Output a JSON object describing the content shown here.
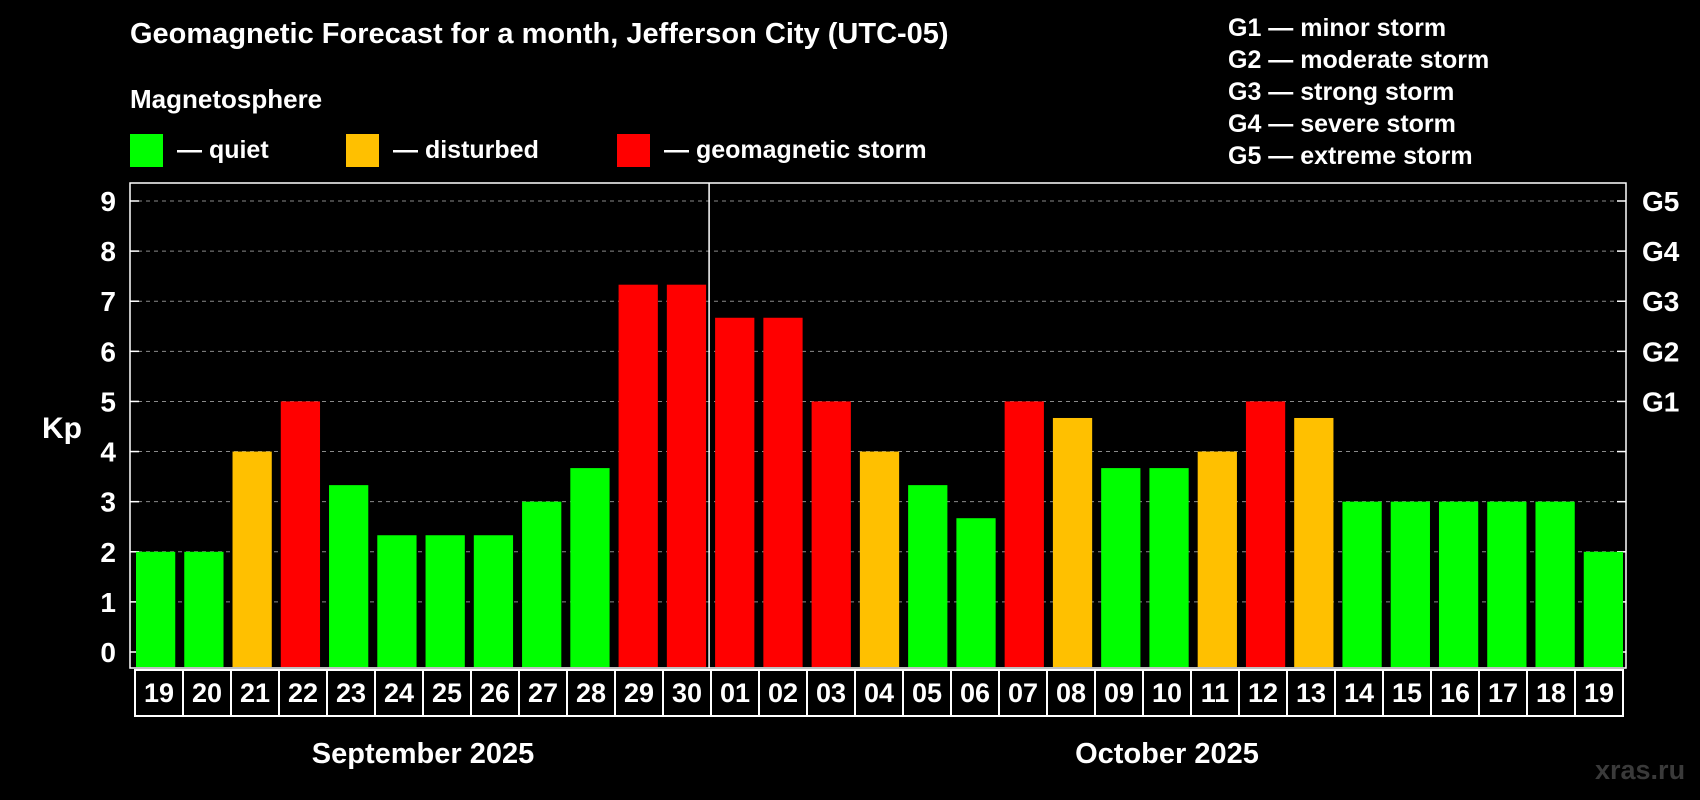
{
  "title": "Geomagnetic Forecast for a month, Jefferson City (UTC-05)",
  "legend": {
    "heading": "Magnetosphere",
    "items": [
      {
        "label": "— quiet",
        "color": "#00ff00"
      },
      {
        "label": "— disturbed",
        "color": "#ffc000"
      },
      {
        "label": "— geomagnetic storm",
        "color": "#ff0000"
      }
    ]
  },
  "storm_scale": [
    "G1 — minor storm",
    "G2 — moderate storm",
    "G3 — strong storm",
    "G4 — severe storm",
    "G5 — extreme storm"
  ],
  "watermark": "xras.ru",
  "chart_data": {
    "type": "bar",
    "ylabel": "Kp",
    "ylim": [
      0,
      9
    ],
    "yticks": [
      "0",
      "1",
      "2",
      "3",
      "4",
      "5",
      "6",
      "7",
      "8",
      "9"
    ],
    "right_axis_labels": [
      {
        "value": 5,
        "label": "G1"
      },
      {
        "value": 6,
        "label": "G2"
      },
      {
        "value": 7,
        "label": "G3"
      },
      {
        "value": 8,
        "label": "G4"
      },
      {
        "value": 9,
        "label": "G5"
      }
    ],
    "grid": "horizontal dashed",
    "categories": [
      "19",
      "20",
      "21",
      "22",
      "23",
      "24",
      "25",
      "26",
      "27",
      "28",
      "29",
      "30",
      "01",
      "02",
      "03",
      "04",
      "05",
      "06",
      "07",
      "08",
      "09",
      "10",
      "11",
      "12",
      "13",
      "14",
      "15",
      "16",
      "17",
      "18",
      "19"
    ],
    "values": [
      2,
      2,
      4,
      5,
      3.33,
      2.33,
      2.33,
      2.33,
      3,
      3.67,
      7.33,
      7.33,
      6.67,
      6.67,
      5,
      4,
      3.33,
      2.67,
      5,
      4.67,
      3.67,
      3.67,
      4,
      5,
      4.67,
      3,
      3,
      3,
      3,
      3,
      2
    ],
    "levels": [
      "quiet",
      "quiet",
      "disturbed",
      "storm",
      "quiet",
      "quiet",
      "quiet",
      "quiet",
      "quiet",
      "quiet",
      "storm",
      "storm",
      "storm",
      "storm",
      "storm",
      "disturbed",
      "quiet",
      "quiet",
      "storm",
      "disturbed",
      "quiet",
      "quiet",
      "disturbed",
      "storm",
      "disturbed",
      "quiet",
      "quiet",
      "quiet",
      "quiet",
      "quiet",
      "quiet"
    ],
    "level_colors": {
      "quiet": "#00ff00",
      "disturbed": "#ffc000",
      "storm": "#ff0000"
    },
    "months": [
      {
        "label": "September 2025",
        "start_index": 0,
        "end_index": 11
      },
      {
        "label": "October 2025",
        "start_index": 12,
        "end_index": 30
      }
    ],
    "month_divider_after_index": 11
  }
}
